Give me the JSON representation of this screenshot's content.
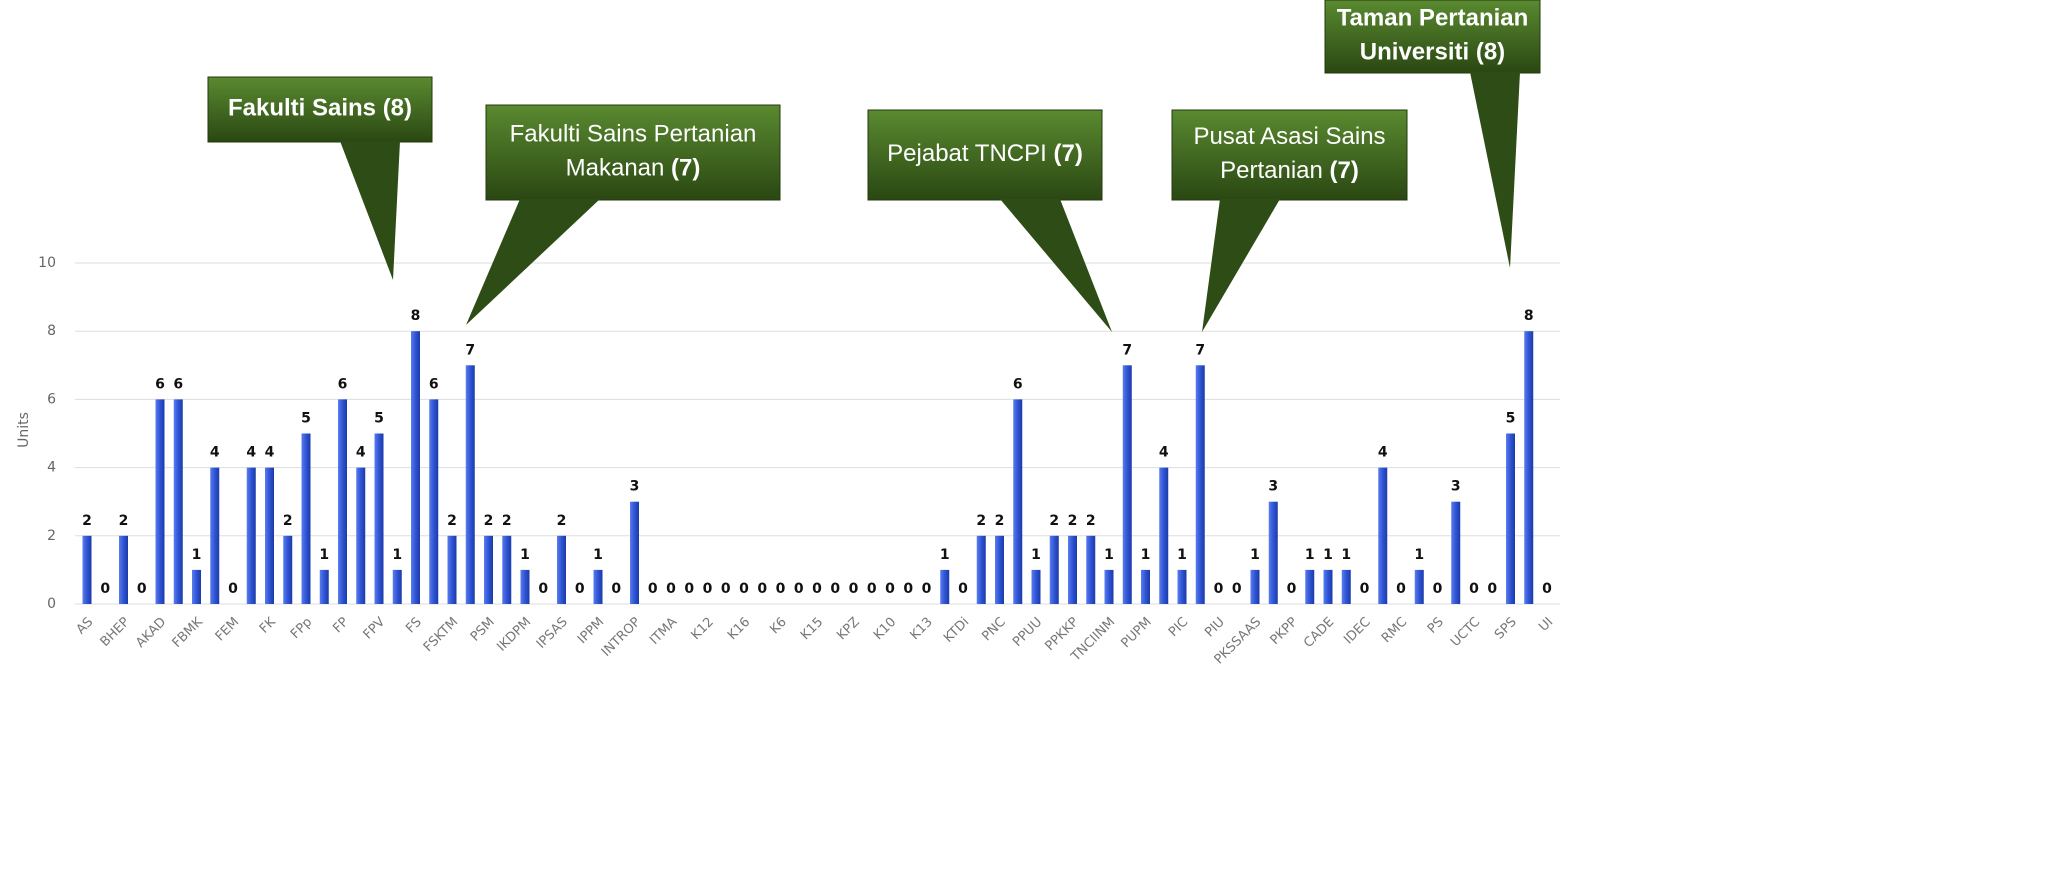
{
  "chart_data": {
    "type": "bar",
    "y_axis_label": "Units",
    "ylim": [
      0,
      10
    ],
    "yticks": [
      0,
      2,
      4,
      6,
      8,
      10
    ],
    "grid": true,
    "color": "#2f55d4",
    "categories": [
      "AS",
      null,
      "BHEP",
      null,
      "AKAD",
      null,
      "FBMK",
      null,
      "FEM",
      null,
      "FK",
      null,
      "FPp",
      null,
      "FP",
      null,
      "FPV",
      null,
      "FS",
      null,
      "FSKTM",
      null,
      "PSM",
      null,
      "IKDPM",
      null,
      "IPSAS",
      null,
      "IPPM",
      null,
      "INTROP",
      null,
      "ITMA",
      null,
      "K12",
      null,
      "K16",
      null,
      "K6",
      null,
      "K15",
      null,
      "KPZ",
      null,
      "K10",
      null,
      "K13",
      null,
      "KTDi",
      null,
      "PNC",
      null,
      "PPUU",
      null,
      "PPKKP",
      null,
      "TNCIINM",
      null,
      "PUPM",
      null,
      "PIC",
      null,
      "PIU",
      null,
      "PKSSAAS",
      null,
      "PKPP",
      null,
      "CADE",
      null,
      "IDEC",
      null,
      "RMC",
      null,
      "PS",
      null,
      "UCTC",
      null,
      "SPS",
      null,
      "UI"
    ],
    "values": [
      2,
      0,
      2,
      0,
      6,
      6,
      1,
      4,
      0,
      4,
      4,
      2,
      5,
      1,
      6,
      4,
      5,
      1,
      8,
      6,
      2,
      7,
      2,
      2,
      1,
      0,
      2,
      0,
      1,
      0,
      3,
      0,
      0,
      0,
      0,
      0,
      0,
      0,
      0,
      0,
      0,
      0,
      0,
      0,
      0,
      0,
      0,
      1,
      0,
      2,
      2,
      6,
      1,
      2,
      2,
      2,
      1,
      7,
      1,
      4,
      1,
      7,
      0,
      0,
      1,
      3,
      0,
      1,
      1,
      1,
      0,
      4,
      0,
      1,
      0,
      3,
      0,
      0,
      5,
      8,
      0
    ],
    "annotations": [
      {
        "lines": [
          "Fakulti Sains"
        ],
        "count": "(8)",
        "all_bold": true
      },
      {
        "lines": [
          "Fakulti Sains Pertanian",
          "Makanan"
        ],
        "count": "(7)",
        "all_bold": false
      },
      {
        "lines": [
          "Pejabat TNCPI"
        ],
        "count": "(7)",
        "all_bold": false
      },
      {
        "lines": [
          "Pusat Asasi Sains",
          "Pertanian"
        ],
        "count": "(7)",
        "all_bold": false
      },
      {
        "lines": [
          "Taman Pertanian",
          "Universiti"
        ],
        "count": "(8)",
        "all_bold": true
      }
    ]
  }
}
